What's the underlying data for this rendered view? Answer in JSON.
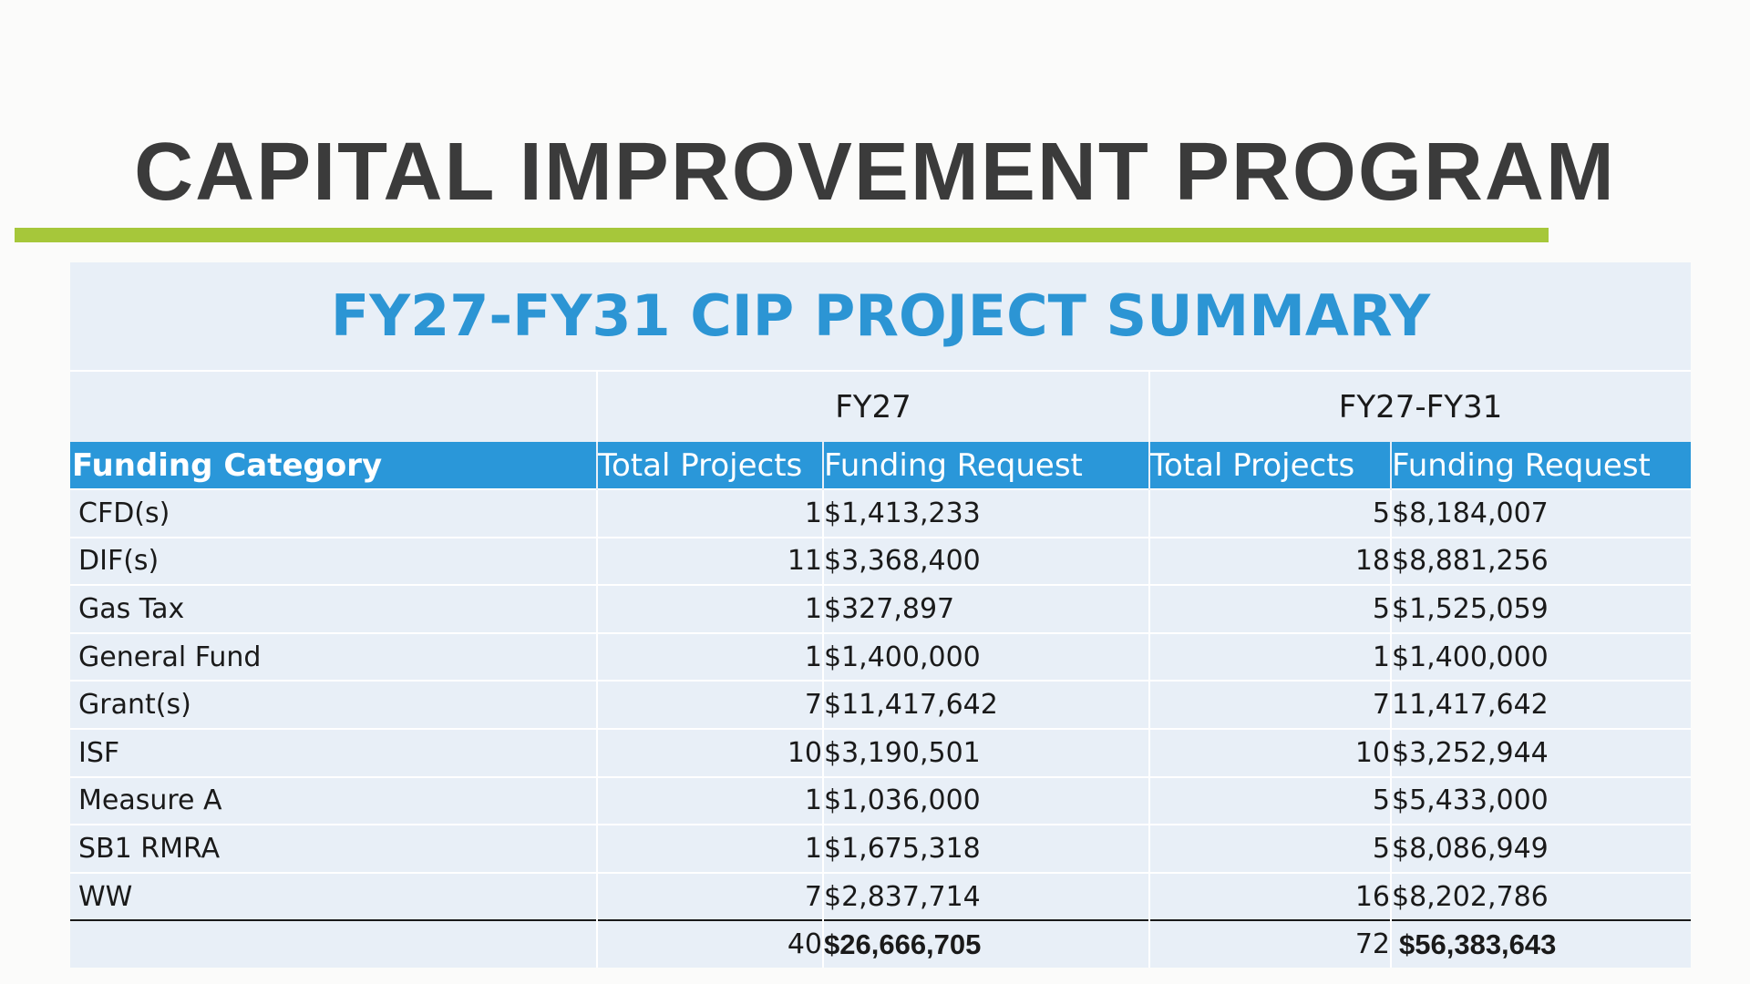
{
  "slide": {
    "title": "CAPITAL IMPROVEMENT PROGRAM",
    "accent_color": "#a6c73a"
  },
  "summary": {
    "title": "FY27-FY31 CIP PROJECT SUMMARY",
    "title_color": "#2c95d4",
    "header_color": "#2a97d9",
    "groups": {
      "fy27": "FY27",
      "fy27_fy31": "FY27-FY31"
    },
    "columns": {
      "category": "Funding Category",
      "fy27_projects": "Total Projects",
      "fy27_funding": "Funding Request",
      "range_projects": "Total Projects",
      "range_funding": "Funding Request"
    },
    "rows": [
      {
        "category": "CFD(s)",
        "fy27_projects": "1",
        "fy27_funding": "$1,413,233",
        "range_projects": "5",
        "range_funding": "$8,184,007"
      },
      {
        "category": "DIF(s)",
        "fy27_projects": "11",
        "fy27_funding": "$3,368,400",
        "range_projects": "18",
        "range_funding": "$8,881,256"
      },
      {
        "category": "Gas Tax",
        "fy27_projects": "1",
        "fy27_funding": "$327,897",
        "range_projects": "5",
        "range_funding": "$1,525,059"
      },
      {
        "category": "General Fund",
        "fy27_projects": "1",
        "fy27_funding": "$1,400,000",
        "range_projects": "1",
        "range_funding": "$1,400,000"
      },
      {
        "category": "Grant(s)",
        "fy27_projects": "7",
        "fy27_funding": "$11,417,642",
        "range_projects": "7",
        "range_funding": "11,417,642"
      },
      {
        "category": "ISF",
        "fy27_projects": "10",
        "fy27_funding": "$3,190,501",
        "range_projects": "10",
        "range_funding": "$3,252,944"
      },
      {
        "category": "Measure A",
        "fy27_projects": "1",
        "fy27_funding": "$1,036,000",
        "range_projects": "5",
        "range_funding": "$5,433,000"
      },
      {
        "category": "SB1 RMRA",
        "fy27_projects": "1",
        "fy27_funding": "$1,675,318",
        "range_projects": "5",
        "range_funding": "$8,086,949"
      },
      {
        "category": "WW",
        "fy27_projects": "7",
        "fy27_funding": "$2,837,714",
        "range_projects": "16",
        "range_funding": "$8,202,786"
      }
    ],
    "totals": {
      "category": "",
      "fy27_projects": "40",
      "fy27_funding": "$26,666,705",
      "range_projects": "72",
      "range_funding": "$56,383,643"
    }
  }
}
